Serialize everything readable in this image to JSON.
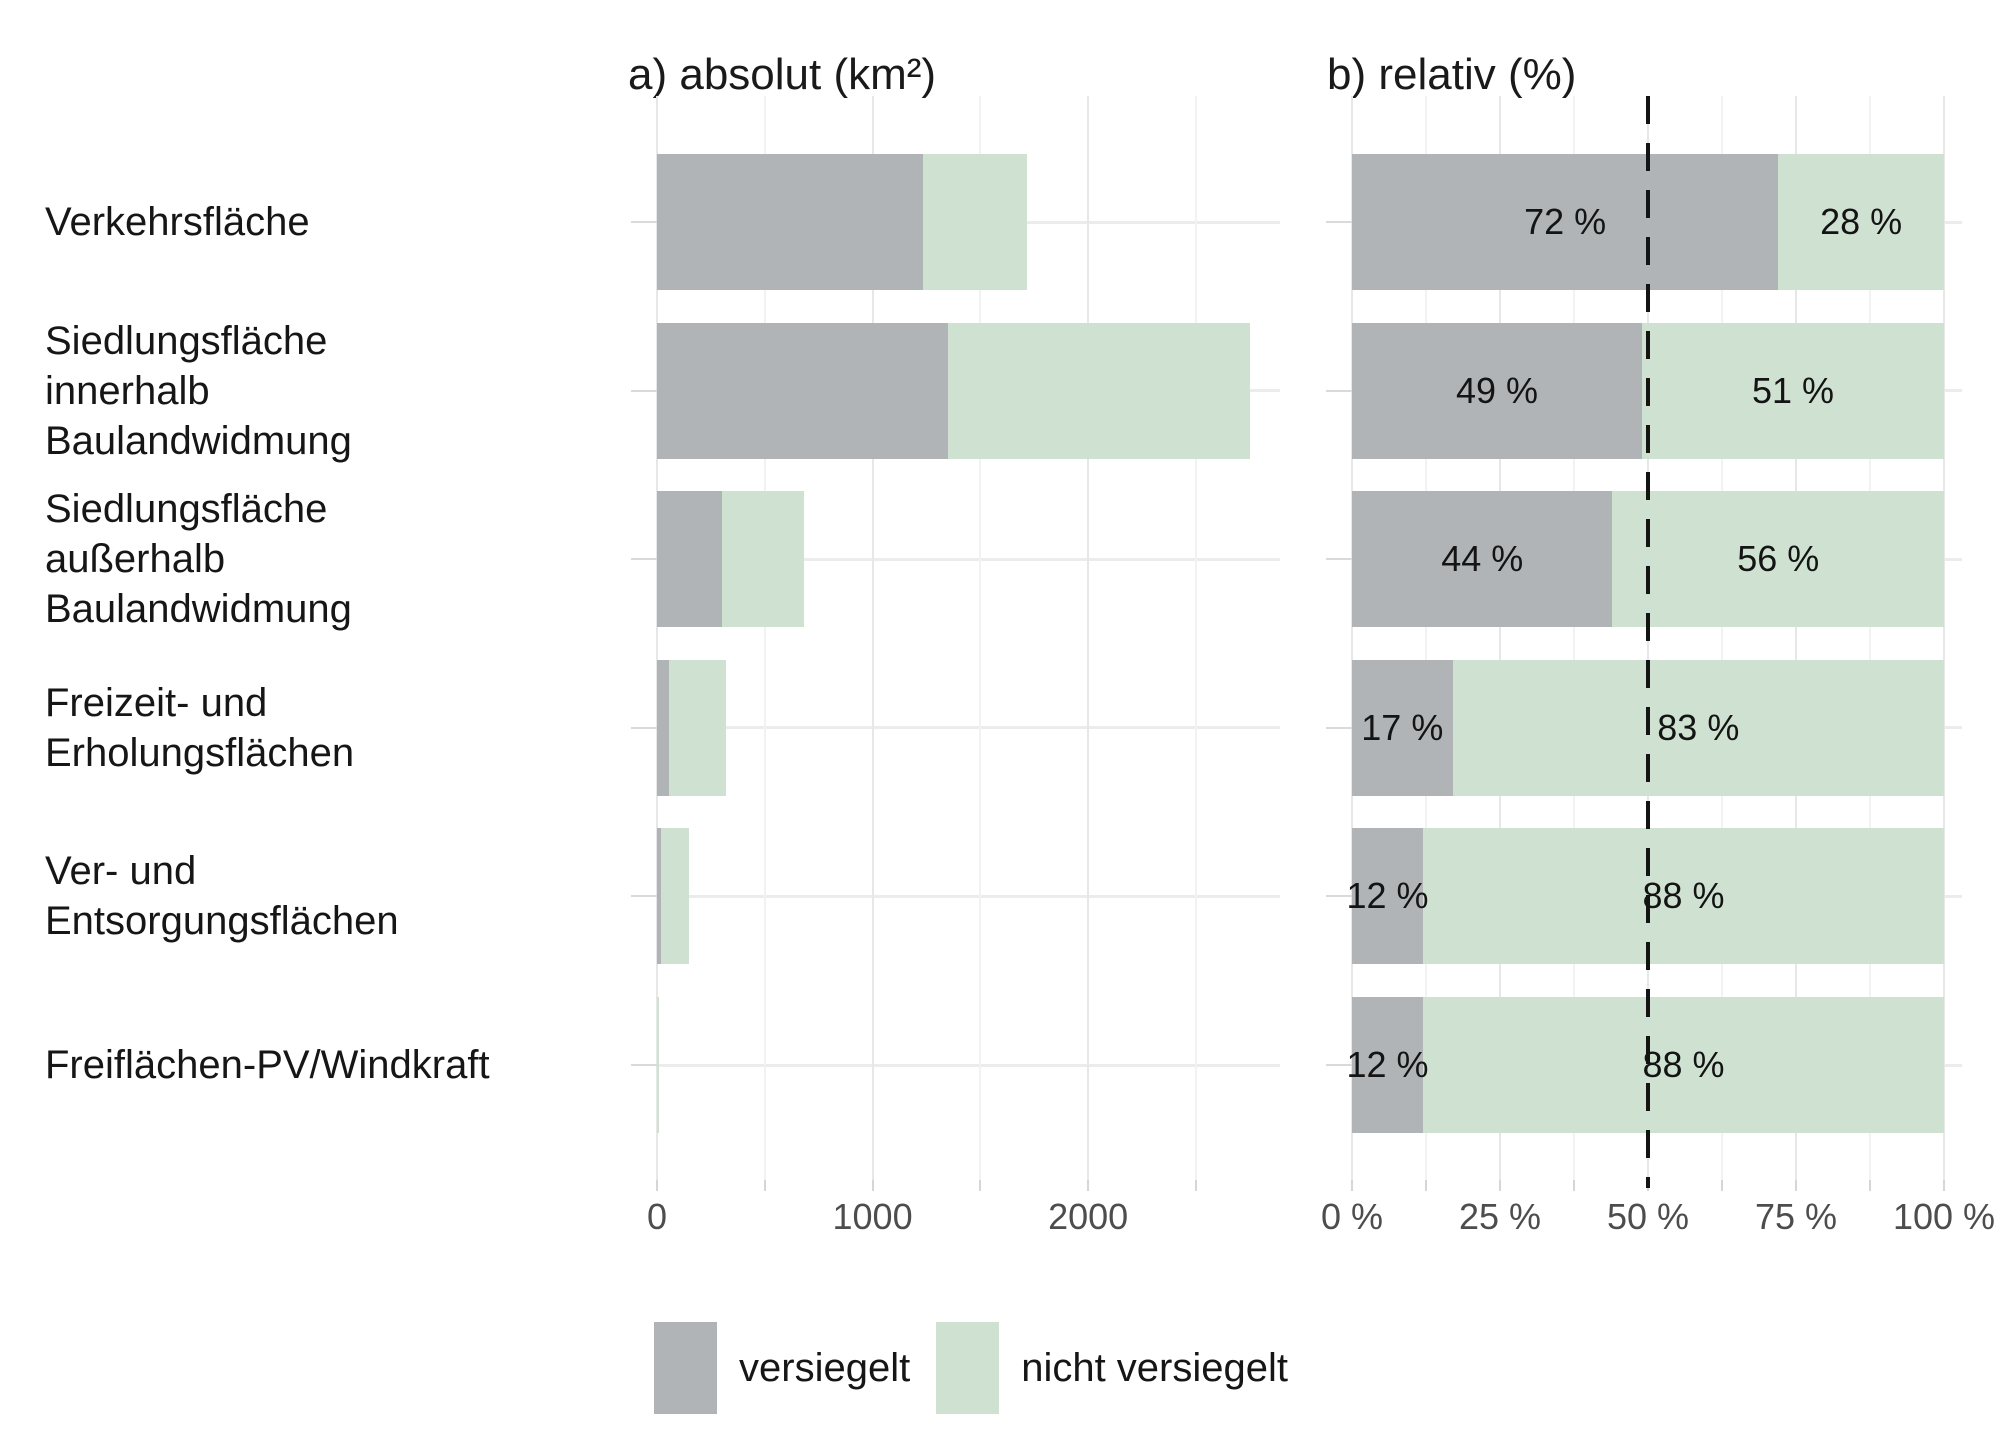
{
  "figure": {
    "panel_a_title": "a) absolut (km²)",
    "panel_b_title": "b) relativ (%)"
  },
  "legend": {
    "items": [
      {
        "label": "versiegelt",
        "color": "#b1b4b6"
      },
      {
        "label": "nicht versiegelt",
        "color": "#cfe2d1"
      }
    ]
  },
  "chart_data": {
    "type": "bar",
    "orientation": "horizontal",
    "stacked": true,
    "grid": "on",
    "legend_position": "bottom",
    "categories": [
      "Verkehrsfläche",
      "Siedlungsfläche innerhalb\nBaulandwidmung",
      "Siedlungsfläche außerhalb\nBaulandwidmung",
      "Freizeit- und Erholungsflächen",
      "Ver- und Entsorgungsflächen",
      "Freiflächen-PV/Windkraft"
    ],
    "series_names": [
      "versiegelt",
      "nicht versiegelt"
    ],
    "colors": {
      "versiegelt": "#b1b4b6",
      "nicht_versiegelt": "#cfe2d1"
    },
    "panels": [
      {
        "id": "a",
        "title": "a) absolut (km²)",
        "unit": "km²",
        "xlim": [
          0,
          2890
        ],
        "x_ticks": [
          {
            "value": 0,
            "label": "0"
          },
          {
            "value": 1000,
            "label": "1000"
          },
          {
            "value": 2000,
            "label": "2000"
          }
        ],
        "x_minor": [
          500,
          1500,
          2500
        ],
        "series": [
          {
            "name": "versiegelt",
            "values": [
              1235,
              1350,
              300,
              54,
              18,
              1
            ]
          },
          {
            "name": "nicht versiegelt",
            "values": [
              480,
              1400,
              380,
              264,
              132,
              7
            ]
          }
        ],
        "totals": [
          1715,
          2750,
          680,
          318,
          150,
          8
        ]
      },
      {
        "id": "b",
        "title": "b) relativ (%)",
        "unit": "%",
        "xlim": [
          0,
          100
        ],
        "x_ticks": [
          {
            "value": 0,
            "label": "0 %"
          },
          {
            "value": 25,
            "label": "25 %"
          },
          {
            "value": 50,
            "label": "50 %"
          },
          {
            "value": 75,
            "label": "75 %"
          },
          {
            "value": 100,
            "label": "100 %"
          }
        ],
        "x_minor": [
          12.5,
          37.5,
          62.5,
          87.5
        ],
        "reference_line": {
          "value": 50,
          "style": "dashed",
          "color": "#141414"
        },
        "series": [
          {
            "name": "versiegelt",
            "values": [
              72,
              49,
              44,
              17,
              12,
              12
            ],
            "labels": [
              "72 %",
              "49 %",
              "44 %",
              "17 %",
              "12 %",
              "12 %"
            ]
          },
          {
            "name": "nicht versiegelt",
            "values": [
              28,
              51,
              56,
              83,
              88,
              88
            ],
            "labels": [
              "28 %",
              "51 %",
              "56 %",
              "83 %",
              "88 %",
              "88 %"
            ]
          }
        ]
      }
    ]
  }
}
